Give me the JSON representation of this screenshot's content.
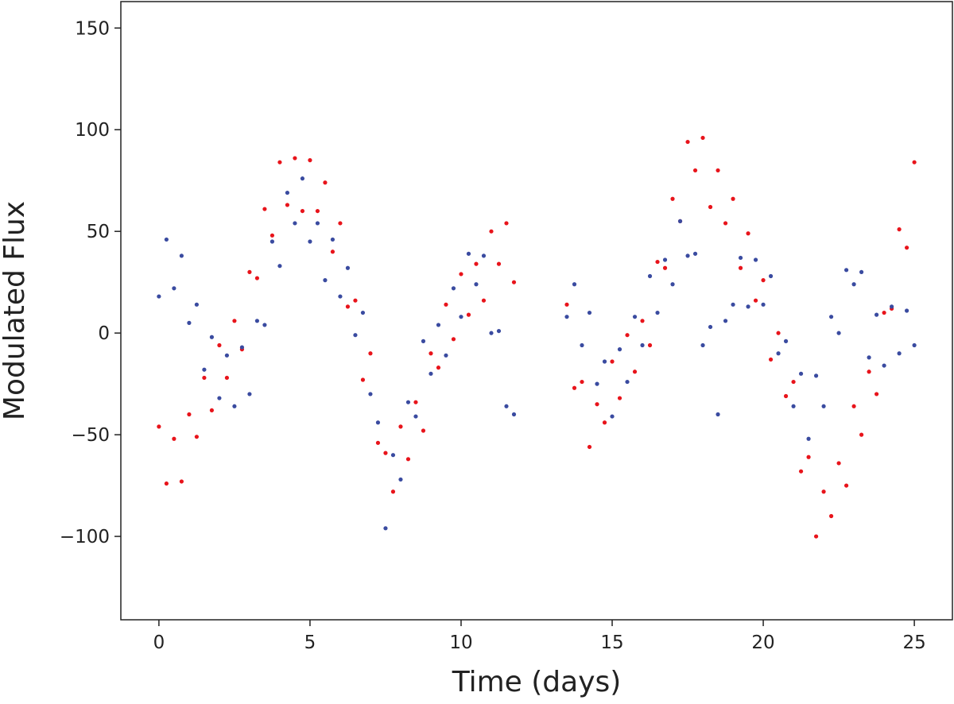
{
  "chart_data": {
    "type": "scatter",
    "xlabel": "Time (days)",
    "ylabel": "Modulated Flux",
    "xlim": [
      -1.26,
      26.26
    ],
    "ylim": [
      -141,
      163
    ],
    "xticks": [
      0,
      5,
      10,
      15,
      20,
      25
    ],
    "yticks": [
      {
        "value": -100,
        "label": "−100"
      },
      {
        "value": -50,
        "label": "−50"
      },
      0,
      50,
      100,
      150
    ],
    "x": [
      0,
      0.25,
      0.5,
      0.75,
      1,
      1.25,
      1.5,
      1.75,
      2,
      2.25,
      2.5,
      2.75,
      3,
      3.25,
      3.5,
      3.75,
      4,
      4.25,
      4.5,
      4.75,
      5,
      5.25,
      5.5,
      5.75,
      6,
      6.25,
      6.5,
      6.75,
      7,
      7.25,
      7.5,
      7.75,
      8,
      8.25,
      8.5,
      8.75,
      9,
      9.25,
      9.5,
      9.75,
      10,
      10.25,
      10.5,
      10.75,
      11,
      11.25,
      11.5,
      11.75,
      13.5,
      13.75,
      14,
      14.25,
      14.5,
      14.75,
      15,
      15.25,
      15.5,
      15.75,
      16,
      16.25,
      16.5,
      16.75,
      17,
      17.25,
      17.5,
      17.75,
      18,
      18.25,
      18.5,
      18.75,
      19,
      19.25,
      19.5,
      19.75,
      20,
      20.25,
      20.5,
      20.75,
      21,
      21.25,
      21.5,
      21.75,
      22,
      22.25,
      22.5,
      22.75,
      23,
      23.25,
      23.5,
      23.75,
      24,
      24.25,
      24.5,
      24.75,
      25
    ],
    "series": [
      {
        "color": "#e8141b",
        "values": [
          -46,
          -74,
          -52,
          -73,
          -40,
          -51,
          -22,
          -38,
          -6,
          -22,
          6,
          -8,
          30,
          27,
          61,
          48,
          84,
          63,
          86,
          60,
          85,
          60,
          74,
          40,
          54,
          13,
          16,
          -23,
          -10,
          -54,
          -59,
          -78,
          -46,
          -62,
          -34,
          -48,
          -10,
          -17,
          14,
          -3,
          29,
          9,
          34,
          16,
          50,
          34,
          54,
          25,
          14,
          -27,
          -24,
          -56,
          -35,
          -44,
          -14,
          -32,
          -1,
          -19,
          6,
          -6,
          35,
          32,
          66,
          55,
          94,
          80,
          96,
          62,
          80,
          54,
          66,
          32,
          49,
          16,
          26,
          -13,
          0,
          -31,
          -24,
          -68,
          -61,
          -100,
          -78,
          -90,
          -64,
          -75,
          -36,
          -50,
          -19,
          -30,
          10,
          12,
          51,
          42,
          84
        ]
      },
      {
        "color": "#3a4ba0",
        "values": [
          18,
          46,
          22,
          38,
          5,
          14,
          -18,
          -2,
          -32,
          -11,
          -36,
          -7,
          -30,
          6,
          4,
          45,
          33,
          69,
          54,
          76,
          45,
          54,
          26,
          46,
          18,
          32,
          -1,
          10,
          -30,
          -44,
          -96,
          -60,
          -72,
          -34,
          -41,
          -4,
          -20,
          4,
          -11,
          22,
          8,
          39,
          24,
          38,
          0,
          1,
          -36,
          -40,
          8,
          24,
          -6,
          10,
          -25,
          -14,
          -41,
          -8,
          -24,
          8,
          -6,
          28,
          10,
          36,
          24,
          55,
          38,
          39,
          -6,
          3,
          -40,
          6,
          14,
          37,
          13,
          36,
          14,
          28,
          -10,
          -4,
          -36,
          -20,
          -52,
          -21,
          -36,
          8,
          0,
          31,
          24,
          30,
          -12,
          9,
          -16,
          13,
          -10,
          11,
          -6
        ]
      }
    ]
  }
}
